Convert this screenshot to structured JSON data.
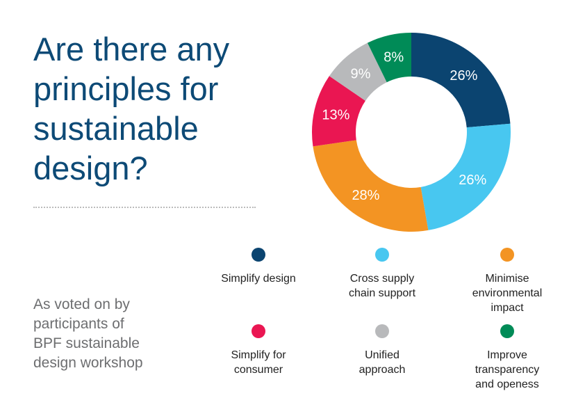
{
  "title_lines": [
    "Are there any",
    "principles for",
    "sustainable",
    "design?"
  ],
  "subtitle_lines": [
    "As voted on by",
    "participants of",
    "BPF sustainable",
    "design workshop"
  ],
  "chart_data": {
    "type": "pie",
    "variant": "donut",
    "title": "Are there any principles for sustainable design?",
    "categories": [
      "Simplify design",
      "Cross supply chain support",
      "Minimise environmental impact",
      "Simplify for consumer",
      "Unified approach",
      "Improve transparency and openess"
    ],
    "values": [
      26,
      26,
      28,
      13,
      9,
      8
    ],
    "labels": [
      "26%",
      "26%",
      "28%",
      "13%",
      "9%",
      "8%"
    ],
    "colors": [
      "#0b4470",
      "#48c7f0",
      "#f39423",
      "#ea1652",
      "#b8b9bb",
      "#008b57"
    ],
    "legend_placement": "bottom"
  },
  "legend": [
    {
      "lines": [
        "Simplify design"
      ]
    },
    {
      "lines": [
        "Cross supply",
        "chain support"
      ]
    },
    {
      "lines": [
        "Minimise",
        "environmental",
        "impact"
      ]
    },
    {
      "lines": [
        "Simplify for",
        "consumer"
      ]
    },
    {
      "lines": [
        "Unified",
        "approach"
      ]
    },
    {
      "lines": [
        "Improve",
        "transparency",
        "and openess"
      ]
    }
  ]
}
